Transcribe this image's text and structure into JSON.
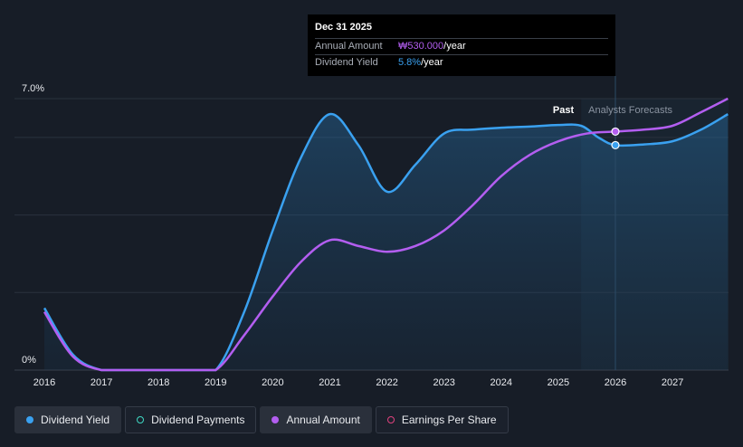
{
  "tooltip": {
    "date": "Dec 31 2025",
    "rows": [
      {
        "label": "Annual Amount",
        "value": "₩530.000",
        "unit": "/year",
        "color": "#b35ef0"
      },
      {
        "label": "Dividend Yield",
        "value": "5.8%",
        "unit": "/year",
        "color": "#3aa1f0"
      }
    ]
  },
  "labels": {
    "past": "Past",
    "forecast": "Analysts Forecasts"
  },
  "legend": [
    {
      "label": "Dividend Yield",
      "color": "#3aa1f0",
      "style": "filled",
      "active": true
    },
    {
      "label": "Dividend Payments",
      "color": "#3fd9c4",
      "style": "outline",
      "active": false
    },
    {
      "label": "Annual Amount",
      "color": "#b35ef0",
      "style": "filled",
      "active": true
    },
    {
      "label": "Earnings Per Share",
      "color": "#e0427e",
      "style": "outline",
      "active": false
    }
  ],
  "chart_data": {
    "type": "line",
    "x_ticks": [
      "2016",
      "2017",
      "2018",
      "2019",
      "2020",
      "2021",
      "2022",
      "2023",
      "2024",
      "2025",
      "2026",
      "2027"
    ],
    "y_ticks": [
      "0%",
      "7.0%"
    ],
    "ylim": [
      0,
      7.0
    ],
    "forecast_start": 2025.4,
    "tooltip_x": 2026.0,
    "series": [
      {
        "name": "Dividend Yield",
        "unit": "%",
        "color": "#3aa1f0",
        "fill": true,
        "points": [
          [
            2016.0,
            1.6
          ],
          [
            2016.5,
            0.4
          ],
          [
            2017.0,
            0.0
          ],
          [
            2017.5,
            0.0
          ],
          [
            2018.0,
            0.0
          ],
          [
            2018.5,
            0.0
          ],
          [
            2019.0,
            0.0
          ],
          [
            2019.5,
            1.5
          ],
          [
            2020.0,
            3.6
          ],
          [
            2020.5,
            5.5
          ],
          [
            2021.0,
            6.6
          ],
          [
            2021.5,
            5.8
          ],
          [
            2022.0,
            4.6
          ],
          [
            2022.5,
            5.3
          ],
          [
            2023.0,
            6.1
          ],
          [
            2023.5,
            6.2
          ],
          [
            2024.0,
            6.25
          ],
          [
            2024.5,
            6.28
          ],
          [
            2025.0,
            6.32
          ],
          [
            2025.4,
            6.3
          ],
          [
            2025.7,
            6.0
          ],
          [
            2026.0,
            5.8
          ],
          [
            2026.5,
            5.82
          ],
          [
            2027.0,
            5.9
          ],
          [
            2027.5,
            6.2
          ],
          [
            2027.97,
            6.6
          ]
        ]
      },
      {
        "name": "Annual Amount",
        "color": "#b35ef0",
        "fill": false,
        "points": [
          [
            2016.0,
            1.5
          ],
          [
            2016.5,
            0.35
          ],
          [
            2017.0,
            0.0
          ],
          [
            2017.5,
            0.0
          ],
          [
            2018.0,
            0.0
          ],
          [
            2018.5,
            0.0
          ],
          [
            2019.0,
            0.0
          ],
          [
            2019.5,
            0.9
          ],
          [
            2020.0,
            1.9
          ],
          [
            2020.5,
            2.8
          ],
          [
            2021.0,
            3.35
          ],
          [
            2021.5,
            3.2
          ],
          [
            2022.0,
            3.05
          ],
          [
            2022.5,
            3.2
          ],
          [
            2023.0,
            3.6
          ],
          [
            2023.5,
            4.25
          ],
          [
            2024.0,
            5.0
          ],
          [
            2024.5,
            5.55
          ],
          [
            2025.0,
            5.9
          ],
          [
            2025.5,
            6.1
          ],
          [
            2026.0,
            6.15
          ],
          [
            2026.5,
            6.2
          ],
          [
            2027.0,
            6.3
          ],
          [
            2027.5,
            6.65
          ],
          [
            2027.97,
            7.0
          ]
        ]
      }
    ]
  }
}
